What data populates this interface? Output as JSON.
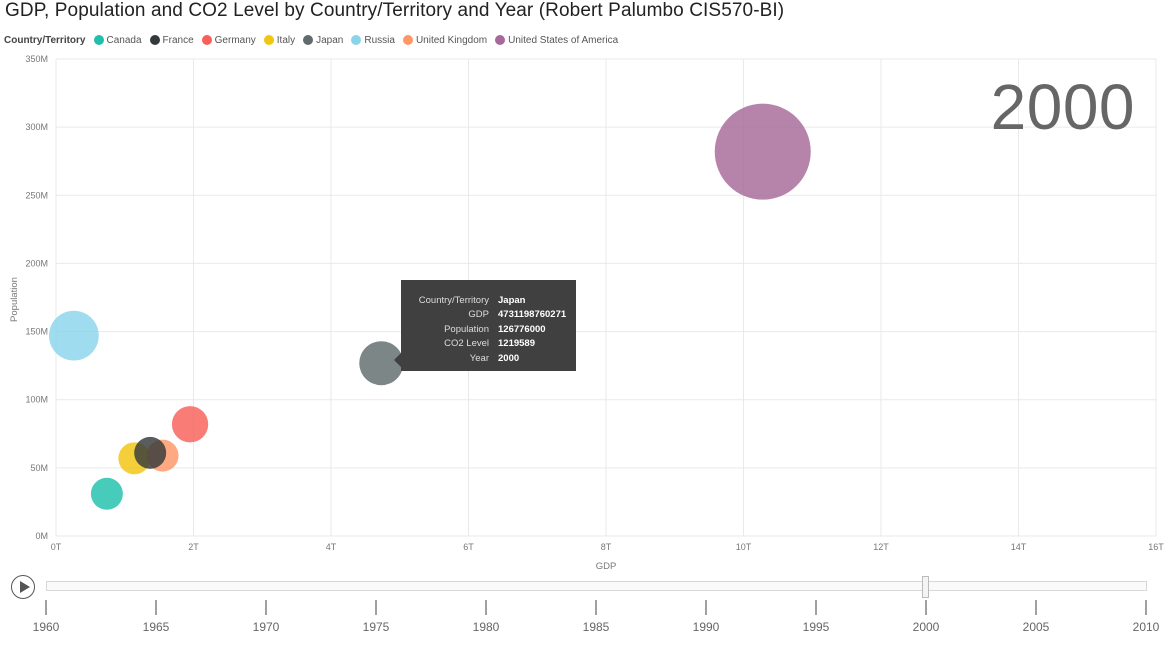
{
  "title": "GDP, Population and CO2 Level by Country/Territory and Year  (Robert Palumbo CIS570-BI)",
  "legend": {
    "title": "Country/Territory",
    "items": [
      {
        "label": "Canada",
        "color": "#1fbfab"
      },
      {
        "label": "France",
        "color": "#34393b"
      },
      {
        "label": "Germany",
        "color": "#f95f59"
      },
      {
        "label": "Italy",
        "color": "#f2c50f"
      },
      {
        "label": "Japan",
        "color": "#5f6b6d"
      },
      {
        "label": "Russia",
        "color": "#8ad4eb"
      },
      {
        "label": "United Kingdom",
        "color": "#fe9666"
      },
      {
        "label": "United States of America",
        "color": "#a66999"
      }
    ]
  },
  "year_label": "2000",
  "chart_data": {
    "type": "scatter",
    "title": "GDP, Population and CO2 Level by Country/Territory and Year  (Robert Palumbo CIS570-BI)",
    "xlabel": "GDP",
    "ylabel": "Population",
    "xlim": [
      0,
      16000000000000
    ],
    "ylim": [
      0,
      350000000
    ],
    "x_ticks": [
      "0T",
      "2T",
      "4T",
      "6T",
      "8T",
      "10T",
      "12T",
      "14T",
      "16T"
    ],
    "y_ticks": [
      "0M",
      "50M",
      "100M",
      "150M",
      "200M",
      "250M",
      "300M",
      "350M"
    ],
    "size_field": "CO2 Level",
    "grid": true,
    "legend_position": "top-left",
    "year": 2000,
    "series": [
      {
        "name": "Russia",
        "x": 260000000000,
        "y": 147000000,
        "size": 1560000,
        "color": "#8ad4eb"
      },
      {
        "name": "Canada",
        "x": 740000000000,
        "y": 31000000,
        "size": 530000,
        "color": "#1fbfab"
      },
      {
        "name": "Italy",
        "x": 1140000000000,
        "y": 57000000,
        "size": 450000,
        "color": "#f2c50f"
      },
      {
        "name": "United Kingdom",
        "x": 1550000000000,
        "y": 59000000,
        "size": 560000,
        "color": "#fe9666"
      },
      {
        "name": "France",
        "x": 1370000000000,
        "y": 61000000,
        "size": 400000,
        "color": "#34393b"
      },
      {
        "name": "Germany",
        "x": 1950000000000,
        "y": 82000000,
        "size": 830000,
        "color": "#f95f59"
      },
      {
        "name": "Japan",
        "x": 4731198760271,
        "y": 126776000,
        "size": 1219589,
        "color": "#5f6b6d"
      },
      {
        "name": "United States of America",
        "x": 10280000000000,
        "y": 282000000,
        "size": 5800000,
        "color": "#a66999"
      }
    ]
  },
  "tooltip": {
    "rows": [
      {
        "key": "Country/Territory",
        "value": "Japan"
      },
      {
        "key": "GDP",
        "value": "4731198760271"
      },
      {
        "key": "Population",
        "value": "126776000"
      },
      {
        "key": "CO2 Level",
        "value": "1219589"
      },
      {
        "key": "Year",
        "value": "2000"
      }
    ]
  },
  "play_axis": {
    "years": [
      "1960",
      "1965",
      "1970",
      "1975",
      "1980",
      "1985",
      "1990",
      "1995",
      "2000",
      "2005",
      "2010"
    ],
    "current": "2000",
    "range": [
      1960,
      2010
    ]
  }
}
